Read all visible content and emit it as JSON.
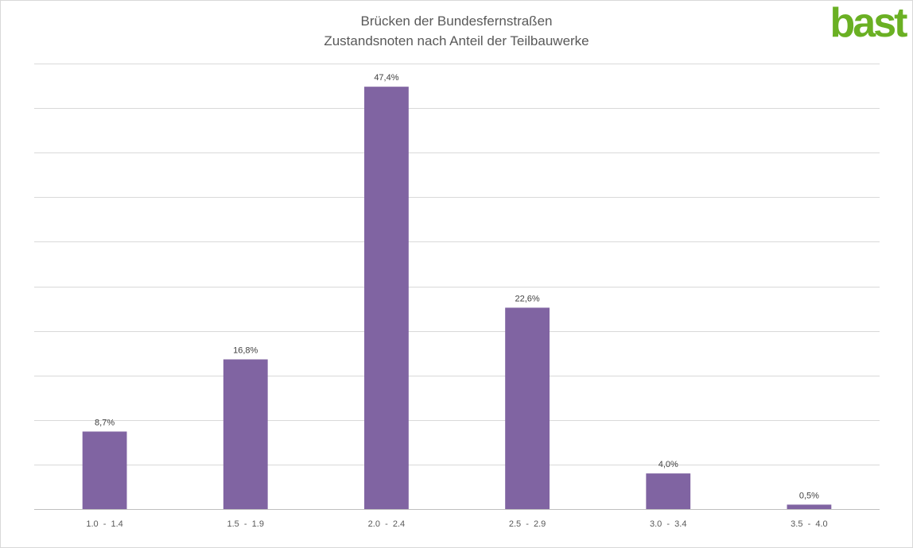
{
  "chart_data": {
    "type": "bar",
    "title": "Brücken der Bundesfernstraßen",
    "subtitle": "Zustandsnoten nach Anteil der Teilbauwerke",
    "categories": [
      "1.0  -  1.4",
      "1.5  -  1.9",
      "2.0  -  2.4",
      "2.5  -  2.9",
      "3.0  -  3.4",
      "3.5  -  4.0"
    ],
    "values": [
      8.7,
      16.8,
      47.4,
      22.6,
      4.0,
      0.5
    ],
    "data_labels": [
      "8,7%",
      "16,8%",
      "47,4%",
      "22,6%",
      "4,0%",
      "0,5%"
    ],
    "ylim": [
      0,
      50
    ],
    "gridline_step": 5,
    "grid": true,
    "y_axis_labels": false,
    "legend": "none",
    "bar_color": "#8064a2"
  },
  "brand": {
    "logo_text": "bast",
    "logo_color": "#6ab023"
  }
}
